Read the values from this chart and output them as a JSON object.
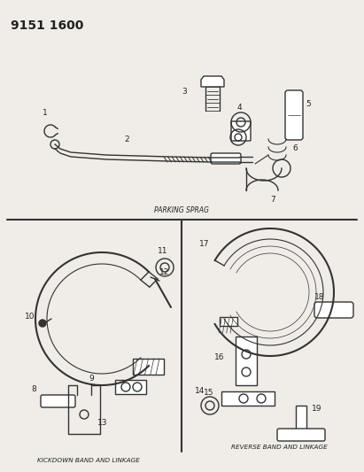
{
  "title": "9151 1600",
  "bg_color": "#f0ede8",
  "line_color": "#333333",
  "label_color": "#222222",
  "parking_sprag_label": "PARKING SPRAG",
  "kickdown_label": "KICKDOWN BAND AND LINKAGE",
  "reverse_label": "REVERSE BAND AND LINKAGE"
}
